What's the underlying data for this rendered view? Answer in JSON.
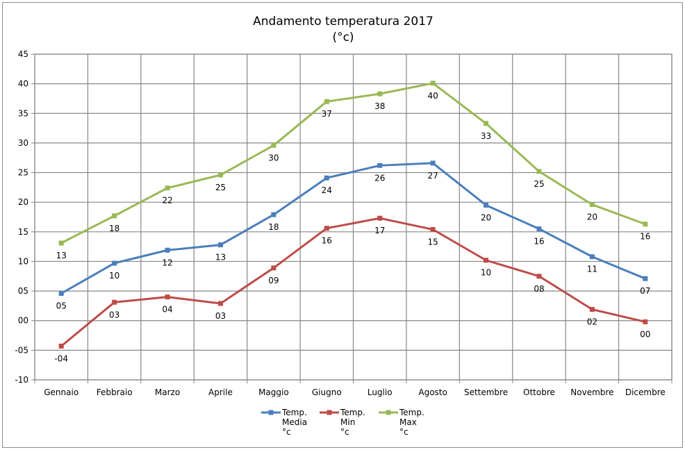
{
  "chart_data": {
    "type": "line",
    "title": "Andamento temperatura 2017",
    "subtitle": "(°c)",
    "xlabel": "",
    "ylabel": "",
    "ylim": [
      -10,
      45
    ],
    "y_step": 5,
    "y_tick_labels": [
      "-10",
      "-05",
      "00",
      "05",
      "10",
      "15",
      "20",
      "25",
      "30",
      "35",
      "40",
      "45"
    ],
    "grid": true,
    "legend_position": "bottom",
    "categories": [
      "Gennaio",
      "Febbraio",
      "Marzo",
      "Aprile",
      "Maggio",
      "Giugno",
      "Luglio",
      "Agosto",
      "Settembre",
      "Ottobre",
      "Novembre",
      "Dicembre"
    ],
    "series": [
      {
        "name": "Temp. Media °c",
        "legend_lines": [
          "Temp.",
          "Media",
          "°c"
        ],
        "color": "#4a7ebb",
        "values": [
          4.6,
          9.7,
          11.9,
          12.8,
          17.9,
          24.1,
          26.2,
          26.6,
          19.5,
          15.5,
          10.8,
          7.1
        ],
        "labels": [
          "05",
          "10",
          "12",
          "13",
          "18",
          "24",
          "26",
          "27",
          "20",
          "16",
          "11",
          "07"
        ]
      },
      {
        "name": "Temp. Min °c",
        "legend_lines": [
          "Temp.",
          "Min",
          "°c"
        ],
        "color": "#be4b48",
        "values": [
          -4.3,
          3.1,
          4.0,
          2.9,
          8.9,
          15.6,
          17.3,
          15.4,
          10.2,
          7.5,
          1.9,
          -0.2
        ],
        "labels": [
          "-04",
          "03",
          "04",
          "03",
          "09",
          "16",
          "17",
          "15",
          "10",
          "08",
          "02",
          "00"
        ]
      },
      {
        "name": "Temp. Max °c",
        "legend_lines": [
          "Temp.",
          "Max",
          "°c"
        ],
        "color": "#98b954",
        "values": [
          13.1,
          17.7,
          22.4,
          24.6,
          29.6,
          37.0,
          38.3,
          40.1,
          33.3,
          25.2,
          19.6,
          16.3
        ],
        "labels": [
          "13",
          "18",
          "22",
          "25",
          "30",
          "37",
          "38",
          "40",
          "33",
          "25",
          "20",
          "16"
        ]
      }
    ]
  }
}
